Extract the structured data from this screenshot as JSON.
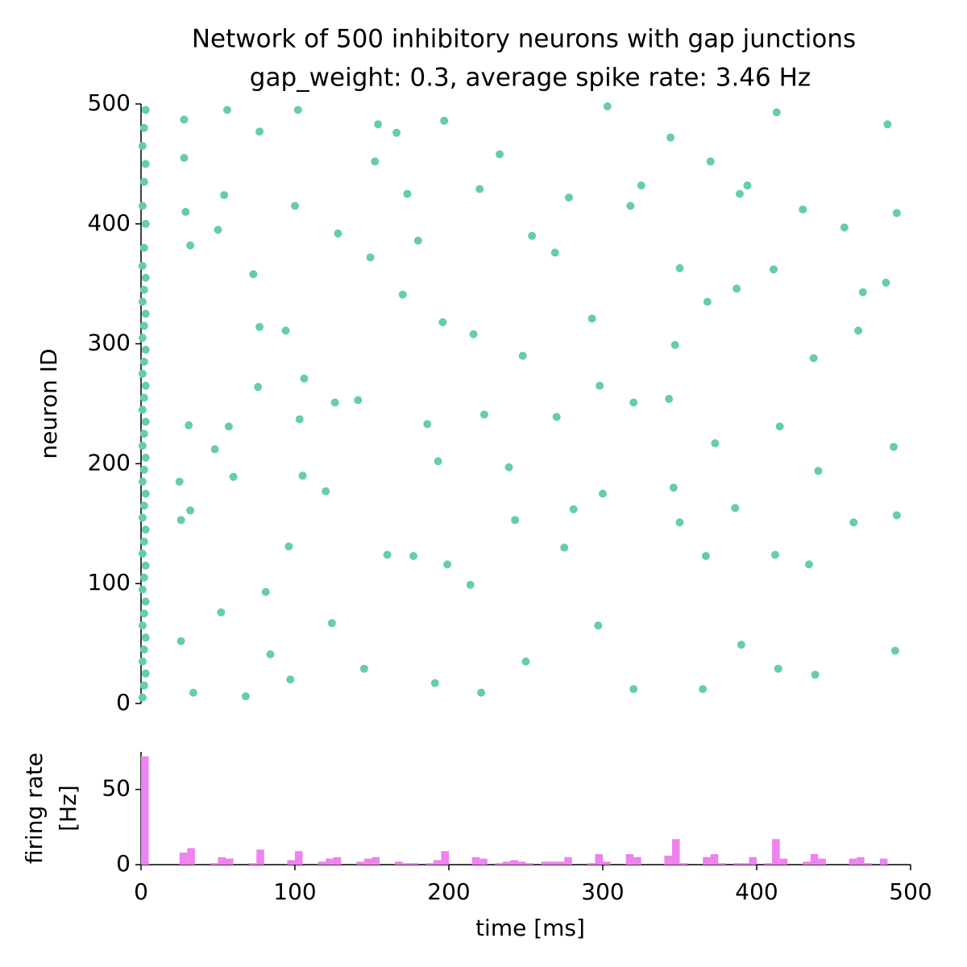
{
  "chart_data": [
    {
      "type": "scatter",
      "title": "Network of 500 inhibitory neurons with gap junctions",
      "subtitle": "gap_weight: 0.3, average spike rate: 3.46 Hz",
      "ylabel": "neuron ID",
      "xlim": [
        0,
        500
      ],
      "ylim": [
        0,
        500
      ],
      "yticks": [
        0,
        100,
        200,
        300,
        400,
        500
      ],
      "series": [
        {
          "color": "#66cdaa",
          "x": [
            1,
            2,
            3,
            1,
            2,
            3,
            1,
            2,
            3,
            1,
            2,
            3,
            1,
            2,
            3,
            1,
            2,
            3,
            1,
            2,
            3,
            1,
            2,
            3,
            1,
            2,
            3,
            1,
            2,
            3,
            1,
            2,
            3,
            1,
            2,
            3,
            1,
            2,
            3,
            1,
            2,
            3,
            1,
            2,
            3,
            25,
            26,
            26,
            28,
            28,
            29,
            31,
            32,
            34,
            32,
            48,
            50,
            52,
            54,
            56,
            57,
            60,
            68,
            73,
            76,
            77,
            77,
            81,
            84,
            94,
            96,
            97,
            100,
            102,
            103,
            105,
            106,
            120,
            124,
            126,
            128,
            141,
            145,
            149,
            152,
            154,
            160,
            166,
            170,
            173,
            177,
            180,
            186,
            191,
            193,
            196,
            197,
            199,
            214,
            216,
            220,
            221,
            223,
            233,
            239,
            243,
            248,
            250,
            254,
            269,
            270,
            275,
            278,
            281,
            293,
            297,
            298,
            300,
            303,
            318,
            320,
            320,
            325,
            343,
            344,
            346,
            347,
            350,
            350,
            365,
            367,
            368,
            370,
            373,
            386,
            387,
            389,
            390,
            394,
            411,
            412,
            413,
            414,
            415,
            430,
            434,
            437,
            438,
            440,
            457,
            463,
            466,
            469,
            484,
            485,
            489,
            490,
            491,
            491
          ],
          "y": [
            5,
            15,
            25,
            35,
            45,
            55,
            65,
            75,
            85,
            95,
            105,
            115,
            125,
            135,
            145,
            155,
            165,
            175,
            185,
            195,
            205,
            215,
            225,
            235,
            245,
            255,
            265,
            275,
            285,
            295,
            305,
            315,
            325,
            335,
            345,
            355,
            365,
            380,
            400,
            415,
            435,
            450,
            465,
            480,
            495,
            185,
            153,
            52,
            487,
            455,
            410,
            232,
            161,
            9,
            382,
            212,
            395,
            76,
            424,
            495,
            231,
            189,
            6,
            358,
            264,
            477,
            314,
            93,
            41,
            311,
            131,
            20,
            415,
            495,
            237,
            190,
            271,
            177,
            67,
            251,
            392,
            253,
            29,
            372,
            452,
            483,
            124,
            476,
            341,
            425,
            123,
            386,
            233,
            17,
            202,
            318,
            486,
            116,
            99,
            308,
            429,
            9,
            241,
            458,
            197,
            153,
            290,
            35,
            390,
            376,
            239,
            130,
            422,
            162,
            321,
            65,
            265,
            175,
            498,
            415,
            251,
            12,
            432,
            254,
            472,
            180,
            299,
            363,
            151,
            12,
            123,
            335,
            452,
            217,
            163,
            346,
            425,
            49,
            432,
            362,
            124,
            493,
            29,
            231,
            412,
            116,
            288,
            24,
            194,
            397,
            151,
            311,
            343,
            351,
            483,
            214,
            44,
            409,
            157
          ]
        }
      ]
    },
    {
      "type": "histogram",
      "xlabel": "time [ms]",
      "ylabel": [
        "firing rate",
        "[Hz]"
      ],
      "xlim": [
        0,
        500
      ],
      "ylim": [
        0,
        75
      ],
      "xticks": [
        0,
        100,
        200,
        300,
        400,
        500
      ],
      "yticks": [
        0,
        50
      ],
      "color": "#ee82ee",
      "bins": [
        0,
        5,
        10,
        15,
        20,
        25,
        30,
        35,
        40,
        45,
        50,
        55,
        60,
        65,
        70,
        75,
        80,
        85,
        90,
        95,
        100,
        105,
        110,
        115,
        120,
        125,
        130,
        135,
        140,
        145,
        150,
        155,
        160,
        165,
        170,
        175,
        180,
        185,
        190,
        195,
        200,
        205,
        210,
        215,
        220,
        225,
        230,
        235,
        240,
        245,
        250,
        255,
        260,
        265,
        270,
        275,
        280,
        285,
        290,
        295,
        300,
        305,
        310,
        315,
        320,
        325,
        330,
        335,
        340,
        345,
        350,
        355,
        360,
        365,
        370,
        375,
        380,
        385,
        390,
        395,
        400,
        405,
        410,
        415,
        420,
        425,
        430,
        435,
        440,
        445,
        450,
        455,
        460,
        465,
        470,
        475,
        480,
        485,
        490,
        495,
        500
      ],
      "values": [
        72,
        0,
        0,
        0,
        0,
        8,
        11,
        0,
        0,
        1,
        5,
        4,
        0,
        0,
        1,
        10,
        0,
        0,
        0,
        3,
        9,
        0,
        0,
        2,
        4,
        5,
        0,
        0,
        2,
        4,
        5,
        0,
        0,
        2,
        1,
        1,
        0,
        1,
        3,
        9,
        0,
        0,
        0,
        5,
        4,
        0,
        1,
        2,
        3,
        2,
        1,
        0,
        2,
        2,
        2,
        5,
        0,
        0,
        1,
        7,
        2,
        0,
        0,
        7,
        5,
        0,
        0,
        0,
        6,
        17,
        1,
        0,
        0,
        5,
        7,
        1,
        0,
        1,
        1,
        5,
        0,
        1,
        17,
        4,
        0,
        0,
        2,
        7,
        4,
        0,
        0,
        0,
        4,
        5,
        1,
        0,
        4,
        0,
        0,
        0
      ]
    }
  ]
}
